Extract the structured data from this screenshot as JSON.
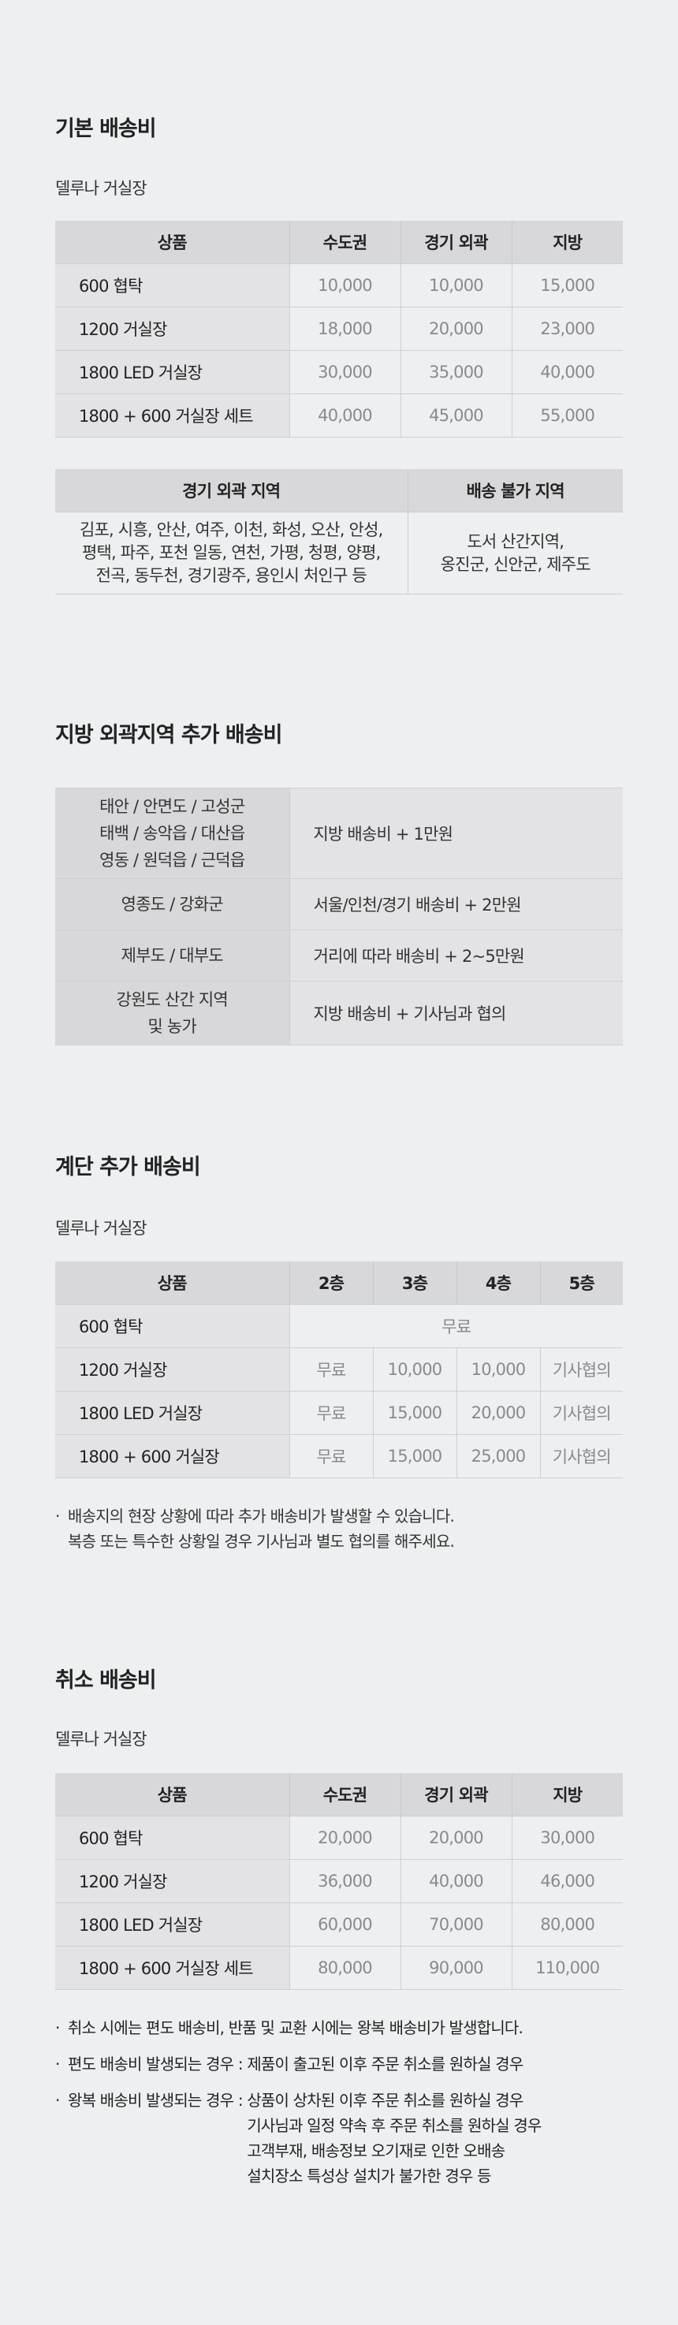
{
  "basic": {
    "title": "기본 배송비",
    "subtitle": "델루나 거실장",
    "headers": [
      "상품",
      "수도권",
      "경기 외곽",
      "지방"
    ],
    "rows": [
      [
        "600 협탁",
        "10,000",
        "10,000",
        "15,000"
      ],
      [
        "1200 거실장",
        "18,000",
        "20,000",
        "23,000"
      ],
      [
        "1800 LED 거실장",
        "30,000",
        "35,000",
        "40,000"
      ],
      [
        "1800 + 600 거실장 세트",
        "40,000",
        "45,000",
        "55,000"
      ]
    ],
    "areas": {
      "headers": [
        "경기 외곽 지역",
        "배송 불가 지역"
      ],
      "outer": [
        "김포, 시흥, 안산, 여주, 이천, 화성, 오산, 안성,",
        "평택, 파주, 포천 일동, 연천, 가평, 청평, 양평,",
        "전곡, 동두천, 경기광주, 용인시 처인구 등"
      ],
      "unavailable": [
        "도서 산간지역,",
        "옹진군, 신안군, 제주도"
      ]
    }
  },
  "regional": {
    "title": "지방 외곽지역 추가 배송비",
    "rows": [
      {
        "region": [
          "태안 / 안면도 / 고성군",
          "태백 / 송악읍 / 대산읍",
          "영동 / 원덕읍 / 근덕읍"
        ],
        "fee": "지방 배송비 + 1만원"
      },
      {
        "region": [
          "영종도 / 강화군"
        ],
        "fee": "서울/인천/경기 배송비 + 2만원"
      },
      {
        "region": [
          "제부도 / 대부도"
        ],
        "fee": "거리에 따라 배송비 + 2~5만원"
      },
      {
        "region": [
          "강원도 산간 지역",
          "및 농가"
        ],
        "fee": "지방 배송비 + 기사님과 협의"
      }
    ]
  },
  "stairs": {
    "title": "계단 추가 배송비",
    "subtitle": "델루나 거실장",
    "headers": [
      "상품",
      "2층",
      "3층",
      "4층",
      "5층"
    ],
    "row_free": {
      "product": "600 협탁",
      "value": "무료"
    },
    "rows": [
      [
        "1200 거실장",
        "무료",
        "10,000",
        "10,000",
        "기사협의"
      ],
      [
        "1800 LED 거실장",
        "무료",
        "15,000",
        "20,000",
        "기사협의"
      ],
      [
        "1800 + 600 거실장",
        "무료",
        "15,000",
        "25,000",
        "기사협의"
      ]
    ],
    "notes": [
      "배송지의 현장 상황에 따라 추가 배송비가 발생할 수 있습니다.",
      "복층 또는 특수한 상황일 경우 기사님과 별도 협의를 해주세요."
    ]
  },
  "cancel": {
    "title": "취소 배송비",
    "subtitle": "델루나 거실장",
    "headers": [
      "상품",
      "수도권",
      "경기 외곽",
      "지방"
    ],
    "rows": [
      [
        "600 협탁",
        "20,000",
        "20,000",
        "30,000"
      ],
      [
        "1200 거실장",
        "36,000",
        "40,000",
        "46,000"
      ],
      [
        "1800 LED 거실장",
        "60,000",
        "70,000",
        "80,000"
      ],
      [
        "1800 + 600 거실장 세트",
        "80,000",
        "90,000",
        "110,000"
      ]
    ],
    "notes": [
      {
        "label": "",
        "lines": [
          "취소 시에는 편도 배송비, 반품 및 교환 시에는 왕복 배송비가 발생합니다."
        ]
      },
      {
        "label": "편도 배송비 발생되는 경우 : ",
        "lines": [
          "제품이 출고된 이후 주문 취소를 원하실 경우"
        ]
      },
      {
        "label": "왕복 배송비 발생되는 경우 : ",
        "lines": [
          "상품이 상차된 이후 주문 취소를 원하실 경우",
          "기사님과 일정 약속 후 주문 취소를 원하실 경우",
          "고객부재, 배송정보 오기재로 인한 오배송",
          "설치장소 특성상 설치가 불가한 경우 등"
        ]
      }
    ]
  },
  "colors": {
    "background": "#eeeff1",
    "header": "#d8d8da",
    "first_column": "#e3e3e5",
    "value_text": "#8a8a8c"
  }
}
